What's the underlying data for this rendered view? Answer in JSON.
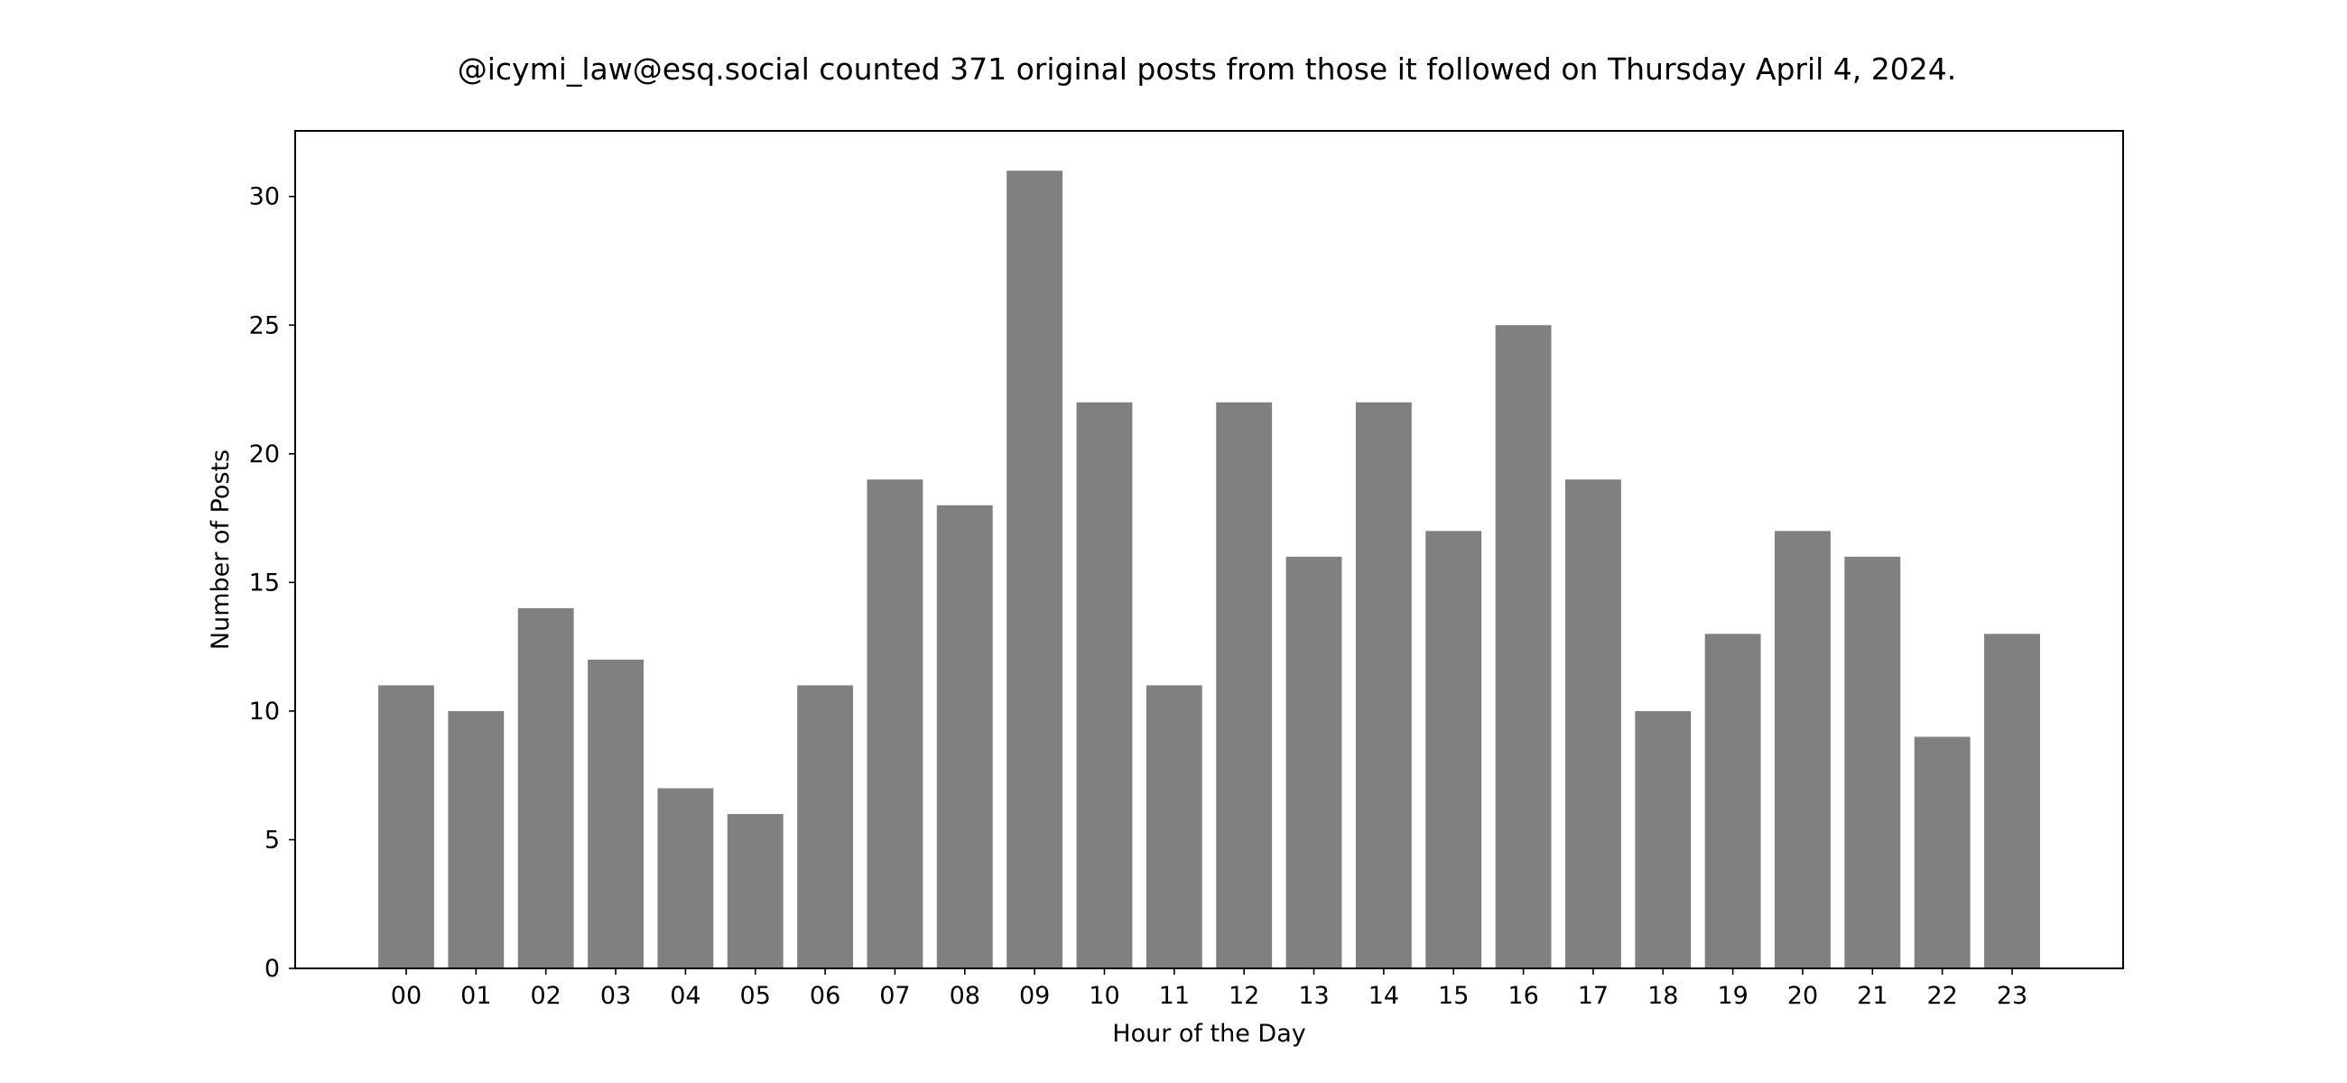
{
  "chart_data": {
    "type": "bar",
    "title": "@icymi_law@esq.social counted 371 original posts from those it followed on Thursday April 4, 2024.",
    "xlabel": "Hour of the Day",
    "ylabel": "Number of Posts",
    "categories": [
      "00",
      "01",
      "02",
      "03",
      "04",
      "05",
      "06",
      "07",
      "08",
      "09",
      "10",
      "11",
      "12",
      "13",
      "14",
      "15",
      "16",
      "17",
      "18",
      "19",
      "20",
      "21",
      "22",
      "23"
    ],
    "values": [
      11,
      10,
      14,
      12,
      7,
      6,
      11,
      19,
      18,
      31,
      22,
      11,
      22,
      16,
      22,
      17,
      25,
      19,
      10,
      13,
      17,
      16,
      9,
      13
    ],
    "yticks": [
      0,
      5,
      10,
      15,
      20,
      25,
      30
    ],
    "ylim": [
      0,
      32.55
    ],
    "grid": false,
    "legend": "none",
    "bar_color": "#808080"
  }
}
